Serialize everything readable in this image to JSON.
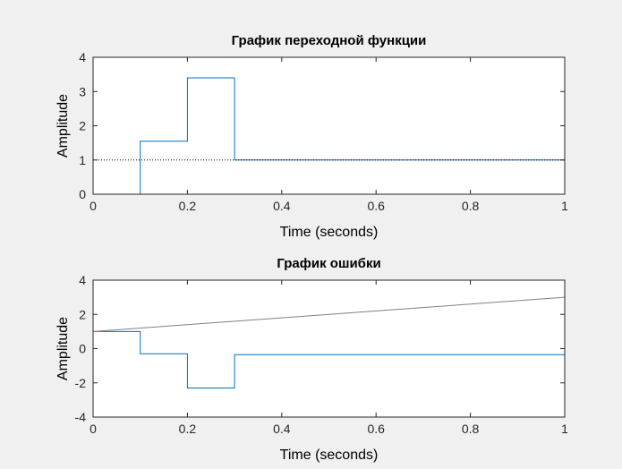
{
  "chart_data": [
    {
      "type": "line",
      "title": "График переходной функции",
      "xlabel": "Time (seconds)",
      "ylabel": "Amplitude",
      "xlim": [
        0,
        1
      ],
      "ylim": [
        0,
        4
      ],
      "x_ticks": [
        "0",
        "0.2",
        "0.4",
        "0.6",
        "0.8",
        "1"
      ],
      "y_ticks": [
        "0",
        "1",
        "2",
        "3",
        "4"
      ],
      "grid": false,
      "series": [
        {
          "style": "stairs",
          "color": "#0072BD",
          "x": [
            0,
            0.1,
            0.1,
            0.2,
            0.2,
            0.3,
            0.3,
            1
          ],
          "y": [
            0,
            0,
            1.55,
            1.55,
            3.4,
            3.4,
            1,
            1
          ]
        },
        {
          "style": "dotted",
          "color": "#000000",
          "x": [
            0,
            1
          ],
          "y": [
            1,
            1
          ]
        }
      ]
    },
    {
      "type": "line",
      "title": "График ошибки",
      "xlabel": "Time (seconds)",
      "ylabel": "Amplitude",
      "xlim": [
        0,
        1
      ],
      "ylim": [
        -4,
        4
      ],
      "x_ticks": [
        "0",
        "0.2",
        "0.4",
        "0.6",
        "0.8",
        "1"
      ],
      "y_ticks": [
        "-4",
        "-2",
        "0",
        "2",
        "4"
      ],
      "grid": false,
      "series": [
        {
          "style": "stairs",
          "color": "#0072BD",
          "x": [
            0,
            0.1,
            0.1,
            0.2,
            0.2,
            0.3,
            0.3,
            1
          ],
          "y": [
            1,
            1,
            -0.3,
            -0.3,
            -2.3,
            -2.3,
            -0.35,
            -0.35
          ]
        },
        {
          "style": "solid",
          "color": "#808080",
          "x": [
            0,
            1
          ],
          "y": [
            1,
            3
          ]
        }
      ]
    }
  ]
}
